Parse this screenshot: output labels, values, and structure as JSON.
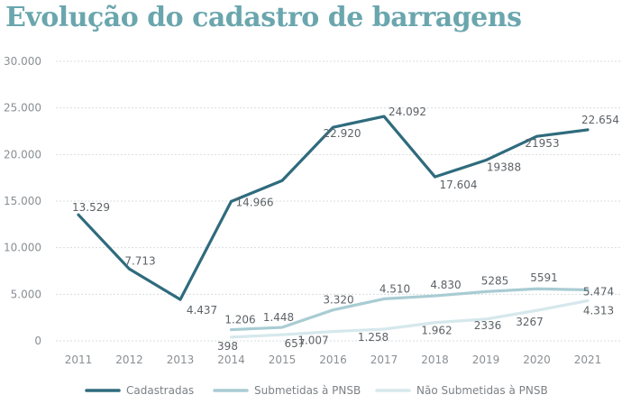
{
  "title": "Evolução do cadastro de barragens",
  "colors": {
    "title": "#6aa6ad",
    "cadastradas": "#2f6b7d",
    "submetidas": "#a9ccd3",
    "nao_submetidas": "#d6e8ec"
  },
  "chart_data": {
    "type": "line",
    "title": "Evolução do cadastro de barragens",
    "xlabel": "",
    "ylabel": "",
    "x": [
      "2011",
      "2012",
      "2013",
      "2014",
      "2015",
      "2016",
      "2017",
      "2018",
      "2019",
      "2020",
      "2021"
    ],
    "ylim": [
      0,
      30000
    ],
    "y_ticks": [
      0,
      5000,
      10000,
      15000,
      20000,
      25000,
      30000
    ],
    "y_tick_labels": [
      "0",
      "5.000",
      "10.000",
      "15.000",
      "20.000",
      "25.000",
      "30.000"
    ],
    "grid": true,
    "legend_position": "bottom",
    "series": [
      {
        "key": "cadastradas",
        "name": "Cadastradas",
        "values": [
          13529,
          7713,
          4437,
          14966,
          17200,
          22920,
          24092,
          17604,
          19388,
          21953,
          22654
        ],
        "labels": [
          "13.529",
          "7.713",
          "4.437",
          "14.966",
          "",
          "22.920",
          "24.092",
          "17.604",
          "19388",
          "21953",
          "22.654"
        ]
      },
      {
        "key": "submetidas",
        "name": "Submetidas à PNSB",
        "values": [
          null,
          null,
          null,
          1206,
          1448,
          3320,
          4510,
          4830,
          5285,
          5591,
          5474
        ],
        "labels": [
          "",
          "",
          "",
          "1.206",
          "1.448",
          "3.320",
          "4.510",
          "4.830",
          "5285",
          "5591",
          "5.474"
        ]
      },
      {
        "key": "nao_submetidas",
        "name": "Não Submetidas à PNSB",
        "values": [
          null,
          null,
          null,
          398,
          657,
          1007,
          1258,
          1962,
          2336,
          3267,
          4313
        ],
        "labels": [
          "",
          "",
          "",
          "398",
          "657",
          "1.007",
          "1.258",
          "1.962",
          "2336",
          "3267",
          "4.313"
        ]
      }
    ]
  }
}
